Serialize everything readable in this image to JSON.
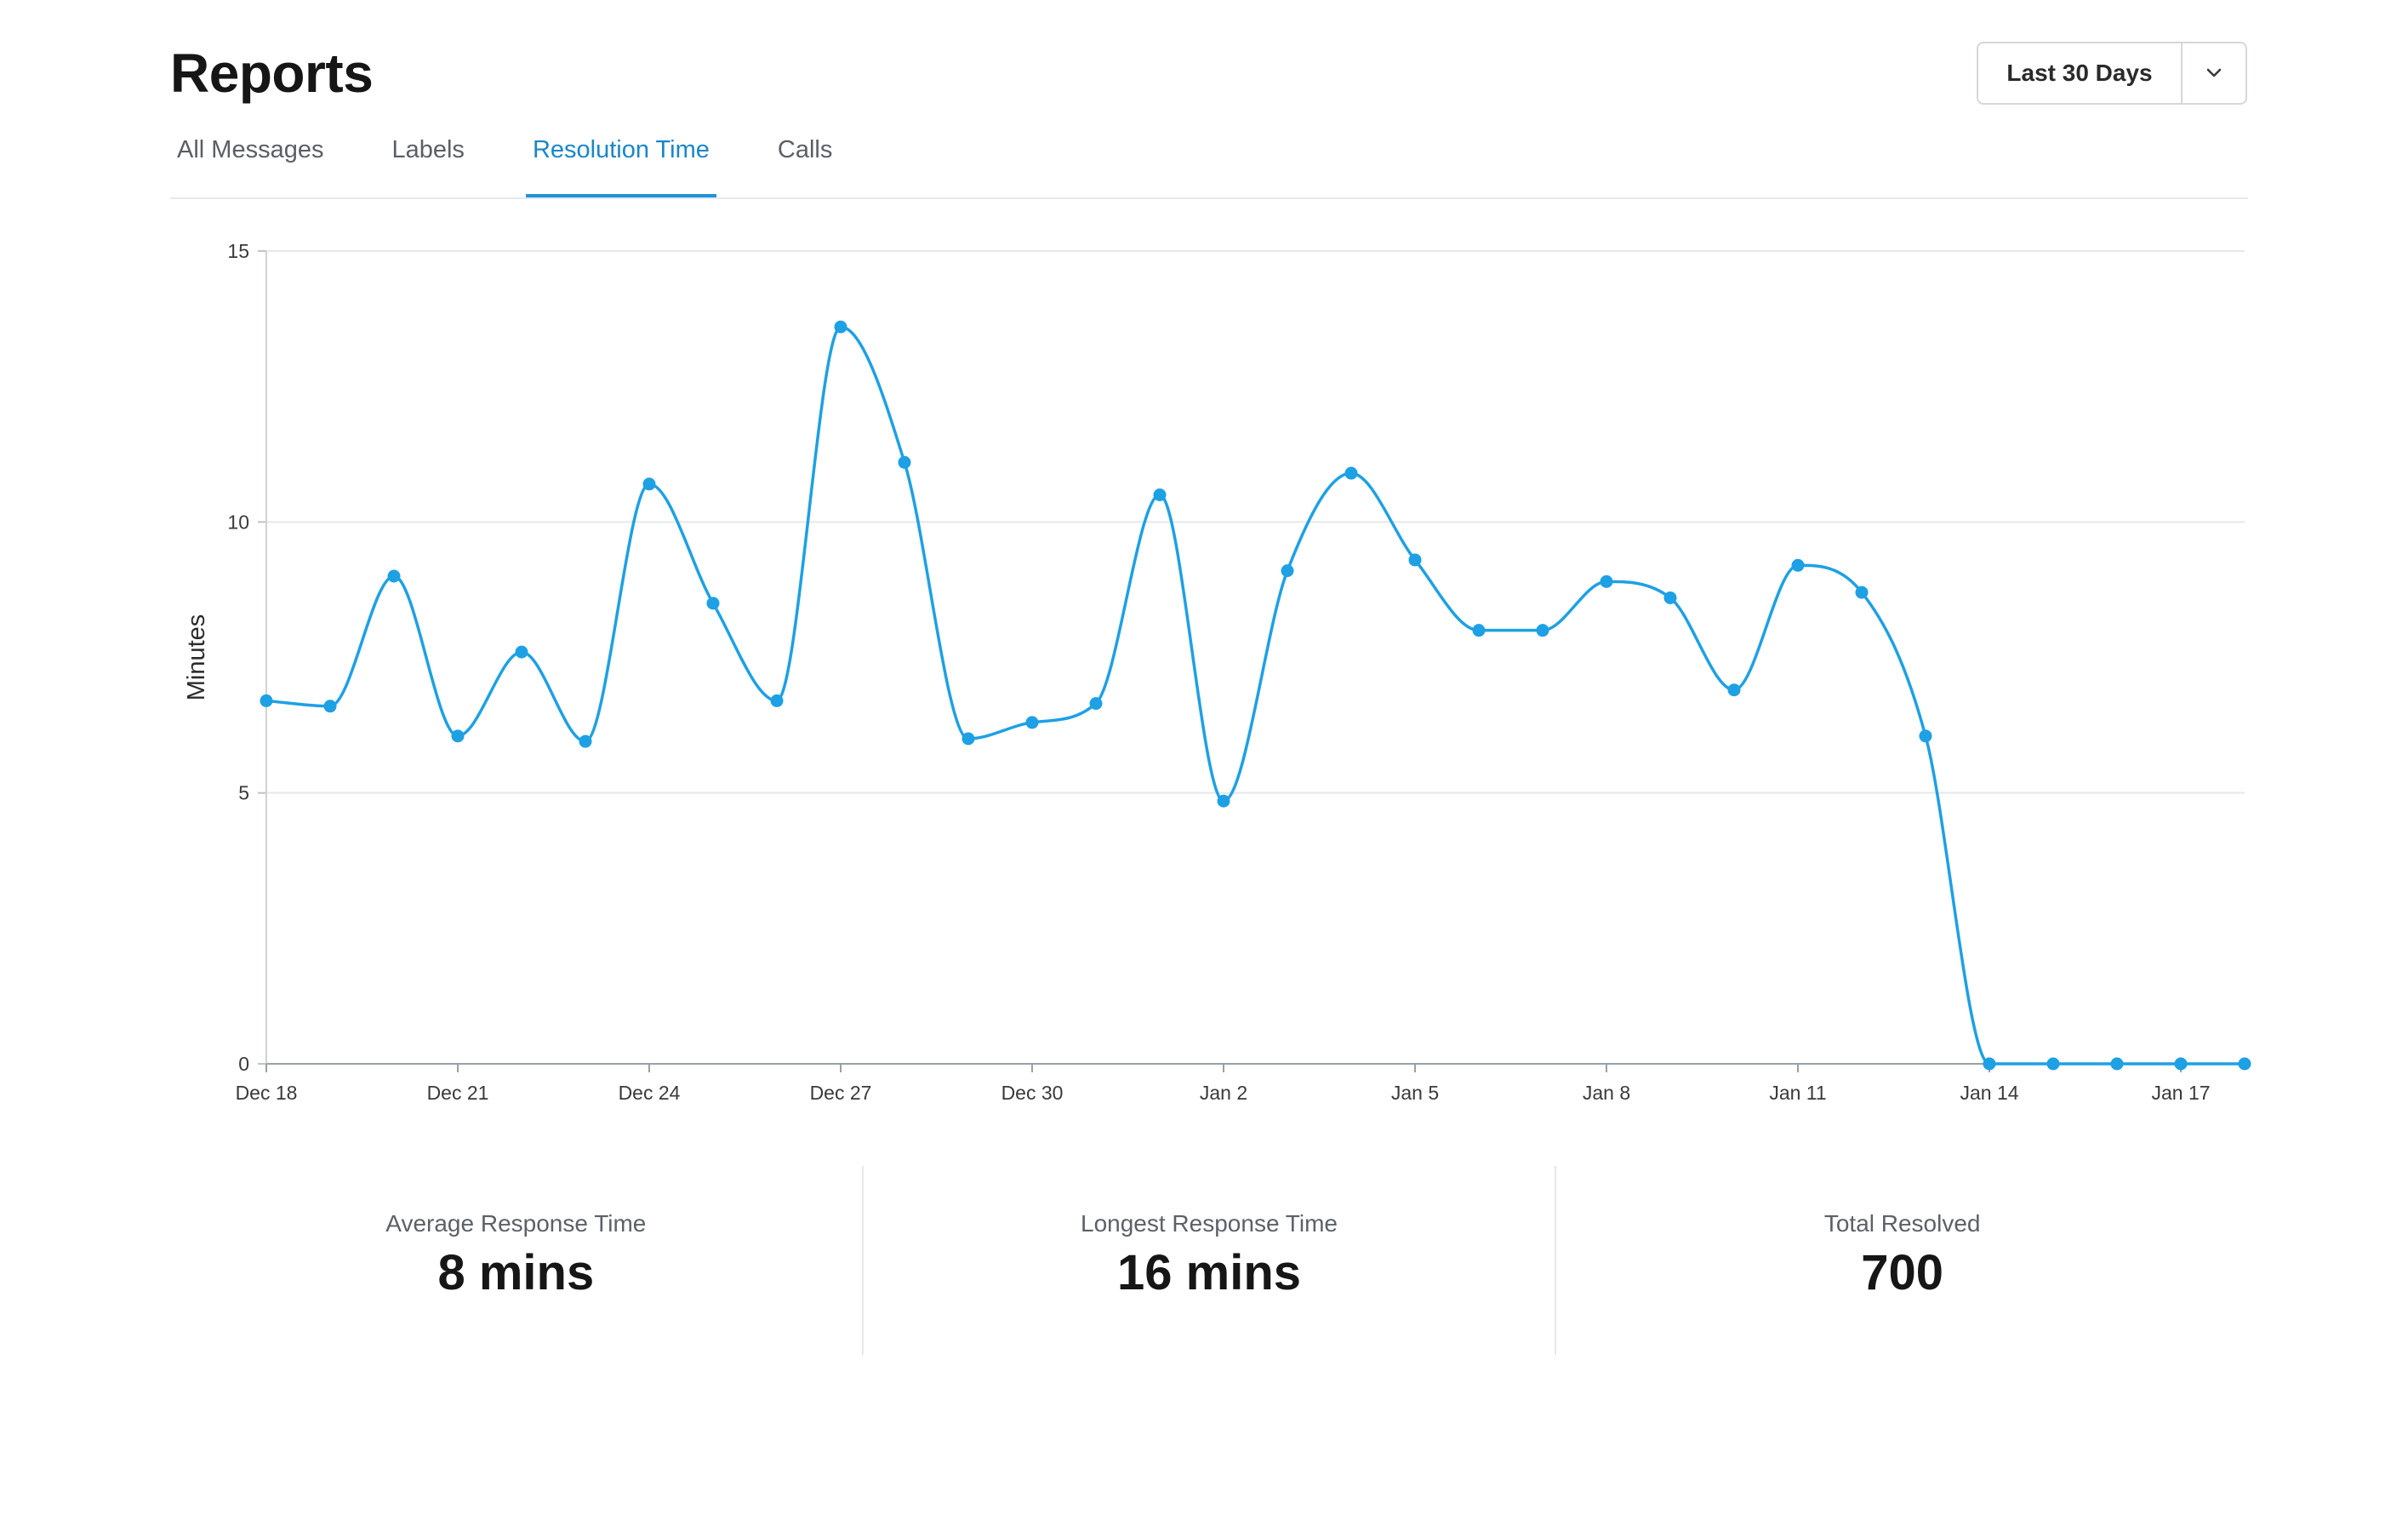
{
  "page": {
    "title": "Reports"
  },
  "range": {
    "label": "Last 30 Days"
  },
  "tabs": [
    {
      "label": "All Messages",
      "active": false
    },
    {
      "label": "Labels",
      "active": false
    },
    {
      "label": "Resolution Time",
      "active": true
    },
    {
      "label": "Calls",
      "active": false
    }
  ],
  "colors": {
    "accent": "#1f93db",
    "line": "#1ea0e4",
    "grid": "#e6e8eb"
  },
  "icons": {
    "range_toggle": "chevron-down-icon"
  },
  "chart_data": {
    "type": "line",
    "ylabel": "Minutes",
    "xlabel": "",
    "ylim": [
      0,
      15
    ],
    "yticks": [
      0,
      5,
      10,
      15
    ],
    "grid": true,
    "x_tick_labels": [
      "Dec 18",
      "Dec 21",
      "Dec 24",
      "Dec 27",
      "Dec 30",
      "Jan 2",
      "Jan 5",
      "Jan 8",
      "Jan 11",
      "Jan 14",
      "Jan 17"
    ],
    "x": [
      "Dec 18",
      "Dec 19",
      "Dec 20",
      "Dec 21",
      "Dec 22",
      "Dec 23",
      "Dec 24",
      "Dec 25",
      "Dec 26",
      "Dec 27",
      "Dec 28",
      "Dec 29",
      "Dec 30",
      "Dec 31",
      "Jan 1",
      "Jan 2",
      "Jan 3",
      "Jan 4",
      "Jan 5",
      "Jan 6",
      "Jan 7",
      "Jan 8",
      "Jan 9",
      "Jan 10",
      "Jan 11",
      "Jan 12",
      "Jan 13",
      "Jan 14",
      "Jan 15",
      "Jan 16",
      "Jan 17",
      "Jan 18"
    ],
    "series": [
      {
        "values": [
          6.7,
          6.6,
          9.0,
          6.05,
          7.6,
          5.95,
          10.7,
          8.5,
          6.7,
          13.6,
          11.1,
          6.0,
          6.3,
          6.65,
          10.5,
          4.85,
          9.1,
          10.9,
          9.3,
          8.0,
          8.0,
          8.9,
          8.6,
          6.9,
          9.2,
          8.7,
          6.05,
          0,
          0,
          0,
          0,
          0
        ]
      }
    ]
  },
  "stats": [
    {
      "label": "Average Response Time",
      "value": "8 mins"
    },
    {
      "label": "Longest Response Time",
      "value": "16 mins"
    },
    {
      "label": "Total Resolved",
      "value": "700"
    }
  ]
}
